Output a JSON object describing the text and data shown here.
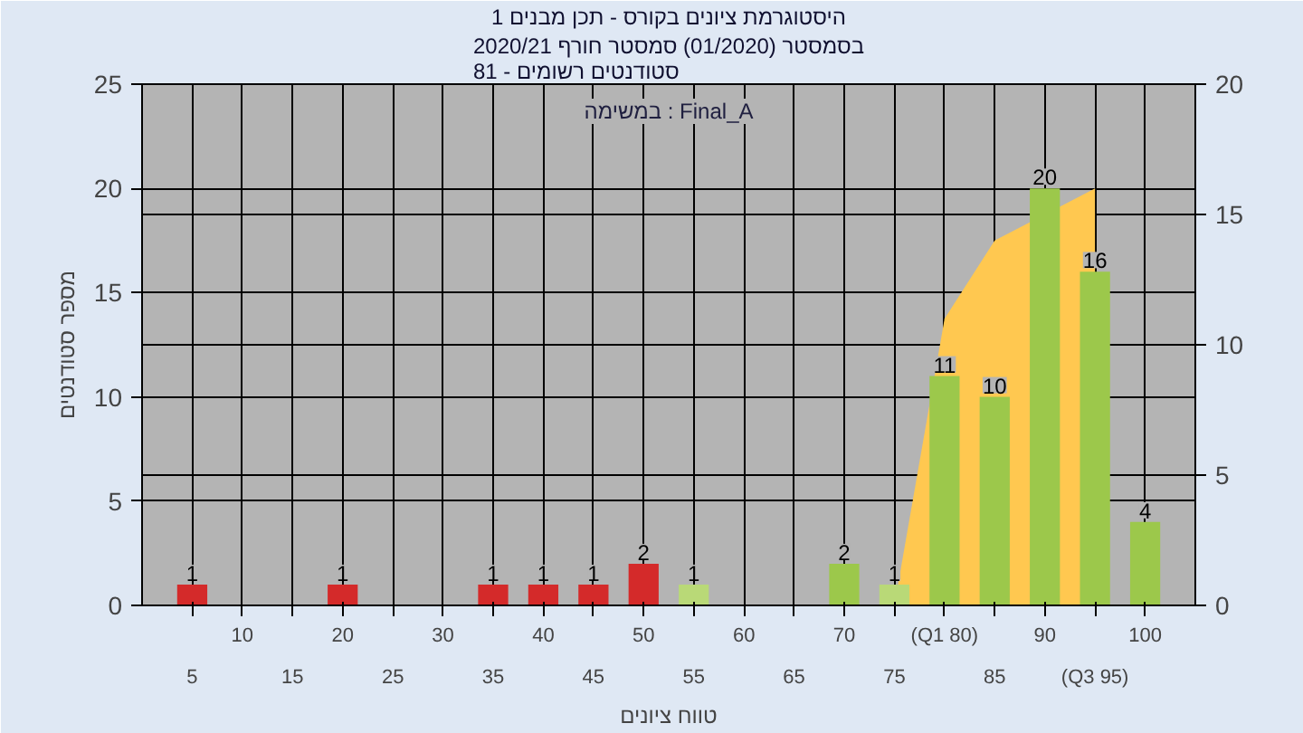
{
  "chart_data": {
    "type": "bar",
    "title": "היסטוגרמת ציונים בקורס - תכן מבנים 1",
    "subtitle": "בסמסטר (01/2020) סמסטר חורף 2020/21\nסטודנטים רשומים - 81",
    "xlabel": "טווח ציונים",
    "ylabel": "מספר סטודנטים",
    "annotations": [
      "במשימה : Final_A"
    ],
    "categories": [
      "5",
      "10",
      "15",
      "20",
      "25",
      "30",
      "35",
      "40",
      "45",
      "50",
      "55",
      "60",
      "65",
      "70",
      "75",
      "(Q1 80)",
      "85",
      "90",
      "(Q3 95)",
      "100"
    ],
    "series": [
      {
        "type": "area",
        "axis": "y2",
        "color": "#ffc850",
        "values": [
          null,
          null,
          null,
          null,
          null,
          null,
          null,
          null,
          null,
          null,
          null,
          null,
          null,
          null,
          0,
          11,
          14,
          null,
          16,
          null
        ]
      },
      {
        "colors": [
          "#d42a2a",
          "#d42a2a",
          "#d42a2a",
          "#d42a2a",
          "#d42a2a",
          "#d42a2a",
          "#d42a2a",
          "#d42a2a",
          "#d42a2a",
          "#d42a2a",
          "#b9d977",
          "#9cc84b",
          "#9cc84b",
          "#9cc84b",
          "#b9d977",
          "#9cc84b",
          "#9cc84b",
          "#9cc84b",
          "#9cc84b",
          "#9cc84b"
        ],
        "values": [
          1,
          0,
          0,
          1,
          0,
          0,
          1,
          1,
          1,
          2,
          1,
          0,
          0,
          2,
          1,
          11,
          10,
          20,
          16,
          4
        ],
        "value_labels": [
          "1",
          null,
          null,
          "1",
          null,
          null,
          "1",
          "1",
          "1",
          "2",
          "1",
          null,
          null,
          "2",
          "1",
          "11",
          "10",
          "20",
          "16",
          "4"
        ]
      }
    ],
    "ylim": [
      0,
      25
    ],
    "yticks": [
      0,
      5,
      10,
      15,
      20,
      25
    ],
    "y2lim": [
      0,
      20
    ],
    "y2ticks": [
      0,
      5,
      10,
      15,
      20
    ],
    "grid": true
  }
}
